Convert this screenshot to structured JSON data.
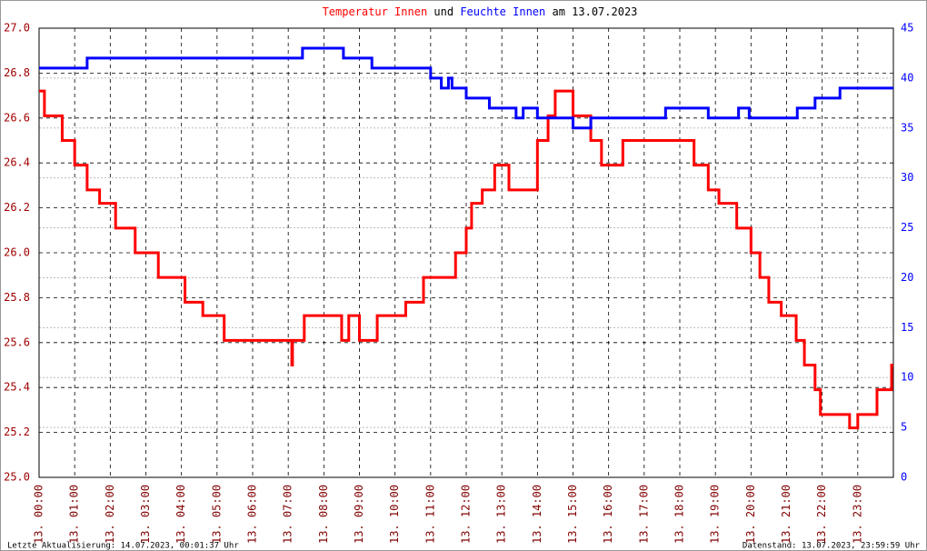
{
  "chart_data": {
    "type": "line",
    "title_connector": "und",
    "title_suffix": "am 13.07.2023",
    "footer_left": "Letzte Aktualisierung: 14.07.2023, 00:01:37 Uhr",
    "footer_right": "Datenstand: 13.07.2023, 23:59:59 Uhr",
    "grid": true,
    "xlim": [
      0,
      24
    ],
    "xticks": [
      {
        "value": 0,
        "label": "13. 00:00"
      },
      {
        "value": 1,
        "label": "13. 01:00"
      },
      {
        "value": 2,
        "label": "13. 02:00"
      },
      {
        "value": 3,
        "label": "13. 03:00"
      },
      {
        "value": 4,
        "label": "13. 04:00"
      },
      {
        "value": 5,
        "label": "13. 05:00"
      },
      {
        "value": 6,
        "label": "13. 06:00"
      },
      {
        "value": 7,
        "label": "13. 07:00"
      },
      {
        "value": 8,
        "label": "13. 08:00"
      },
      {
        "value": 9,
        "label": "13. 09:00"
      },
      {
        "value": 10,
        "label": "13. 10:00"
      },
      {
        "value": 11,
        "label": "13. 11:00"
      },
      {
        "value": 12,
        "label": "13. 12:00"
      },
      {
        "value": 13,
        "label": "13. 13:00"
      },
      {
        "value": 14,
        "label": "13. 14:00"
      },
      {
        "value": 15,
        "label": "13. 15:00"
      },
      {
        "value": 16,
        "label": "13. 16:00"
      },
      {
        "value": 17,
        "label": "13. 17:00"
      },
      {
        "value": 18,
        "label": "13. 18:00"
      },
      {
        "value": 19,
        "label": "13. 19:00"
      },
      {
        "value": 20,
        "label": "13. 20:00"
      },
      {
        "value": 21,
        "label": "13. 21:00"
      },
      {
        "value": 22,
        "label": "13. 22:00"
      },
      {
        "value": 23,
        "label": "13. 23:00"
      }
    ],
    "ylim": [
      25,
      27
    ],
    "yticks": [
      {
        "value": 25,
        "label": "25.0"
      },
      25.2,
      25.4,
      25.6,
      25.8,
      {
        "value": 26,
        "label": "26.0"
      },
      26.2,
      26.4,
      26.6,
      26.8,
      {
        "value": 27,
        "label": "27.0"
      }
    ],
    "y2lim": [
      0,
      45
    ],
    "y2ticks": [
      0,
      5,
      10,
      15,
      20,
      25,
      30,
      35,
      40,
      45
    ],
    "series": [
      {
        "name": "Temperatur Innen",
        "color": "#ff0000",
        "axis": "y",
        "x": [
          0,
          0.15,
          0.15,
          0.65,
          0.65,
          1.0,
          1.0,
          1.35,
          1.35,
          1.7,
          1.7,
          2.15,
          2.15,
          2.7,
          2.7,
          3.35,
          3.35,
          4.1,
          4.1,
          4.6,
          4.6,
          5.2,
          5.2,
          7.1,
          7.1,
          7.12,
          7.12,
          7.45,
          7.45,
          8.5,
          8.5,
          8.7,
          8.7,
          9.0,
          9.0,
          9.5,
          9.5,
          10.3,
          10.3,
          10.8,
          10.8,
          11.7,
          11.7,
          12.0,
          12.0,
          12.15,
          12.15,
          12.45,
          12.45,
          12.8,
          12.8,
          13.2,
          13.2,
          14.0,
          14.0,
          14.3,
          14.3,
          14.5,
          14.5,
          15.0,
          15.0,
          15.5,
          15.5,
          15.8,
          15.8,
          16.4,
          16.4,
          18.4,
          18.4,
          18.8,
          18.8,
          19.1,
          19.1,
          19.6,
          19.6,
          20.0,
          20.0,
          20.25,
          20.25,
          20.5,
          20.5,
          20.85,
          20.85,
          21.27,
          21.27,
          21.5,
          21.5,
          21.8,
          21.8,
          21.95,
          21.95,
          22.77,
          22.77,
          23.0,
          23.0,
          23.54,
          23.54,
          23.95,
          23.95,
          24.0
        ],
        "values": [
          26.72,
          26.72,
          26.61,
          26.61,
          26.5,
          26.5,
          26.39,
          26.39,
          26.28,
          26.28,
          26.22,
          26.22,
          26.11,
          26.11,
          26.0,
          26.0,
          25.89,
          25.89,
          25.78,
          25.78,
          25.72,
          25.72,
          25.61,
          25.61,
          25.5,
          25.5,
          25.61,
          25.61,
          25.72,
          25.72,
          25.61,
          25.61,
          25.72,
          25.72,
          25.61,
          25.61,
          25.72,
          25.72,
          25.78,
          25.78,
          25.89,
          25.89,
          26.0,
          26.0,
          26.11,
          26.11,
          26.22,
          26.22,
          26.28,
          26.28,
          26.39,
          26.39,
          26.28,
          26.28,
          26.5,
          26.5,
          26.61,
          26.61,
          26.72,
          26.72,
          26.61,
          26.61,
          26.5,
          26.5,
          26.39,
          26.39,
          26.5,
          26.5,
          26.39,
          26.39,
          26.28,
          26.28,
          26.22,
          26.22,
          26.11,
          26.11,
          26.0,
          26.0,
          25.89,
          25.89,
          25.78,
          25.78,
          25.72,
          25.72,
          25.61,
          25.61,
          25.5,
          25.5,
          25.39,
          25.39,
          25.28,
          25.28,
          25.22,
          25.22,
          25.28,
          25.28,
          25.39,
          25.39,
          25.5,
          25.5
        ]
      },
      {
        "name": "Feuchte Innen",
        "color": "#0000ff",
        "axis": "y2",
        "x": [
          0,
          1.35,
          1.35,
          7.4,
          7.4,
          8.55,
          8.55,
          9.35,
          9.35,
          11.0,
          11.0,
          11.3,
          11.3,
          11.5,
          11.5,
          11.6,
          11.6,
          12.0,
          12.0,
          12.65,
          12.65,
          13.4,
          13.4,
          13.6,
          13.6,
          14.0,
          14.0,
          15.0,
          15.0,
          15.5,
          15.5,
          17.6,
          17.6,
          18.8,
          18.8,
          19.65,
          19.65,
          19.95,
          19.95,
          21.3,
          21.3,
          21.8,
          21.8,
          22.5,
          22.5,
          24.0
        ],
        "values": [
          41,
          41,
          42,
          42,
          43,
          43,
          42,
          42,
          41,
          41,
          40,
          40,
          39,
          39,
          40,
          40,
          39,
          39,
          38,
          38,
          37,
          37,
          36,
          36,
          37,
          37,
          36,
          36,
          35,
          35,
          36,
          36,
          37,
          37,
          36,
          36,
          37,
          37,
          36,
          36,
          37,
          37,
          38,
          38,
          39,
          39
        ]
      }
    ]
  }
}
